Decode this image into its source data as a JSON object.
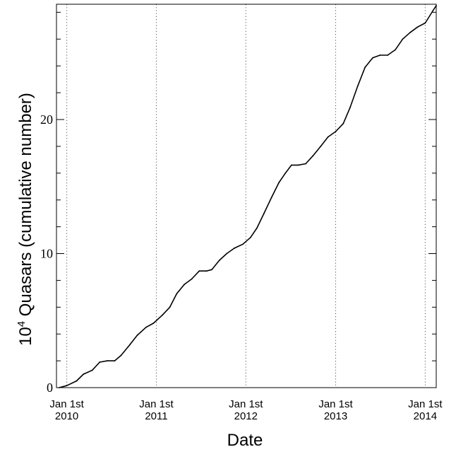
{
  "chart_data": {
    "type": "line",
    "title": "",
    "xlabel": "Date",
    "ylabel_base": "10",
    "ylabel_exp": "4",
    "ylabel_rest": " Quasars (cumulative number)",
    "ylim": [
      0,
      28.6
    ],
    "xlim": [
      "2009-11-20",
      "2014-02-15"
    ],
    "grid": "vertical dotted lines at year starts",
    "x_tick_labels": [
      {
        "date": "2010-01-01",
        "line1": "Jan 1st",
        "line2": "2010"
      },
      {
        "date": "2011-01-01",
        "line1": "Jan 1st",
        "line2": "2011"
      },
      {
        "date": "2012-01-01",
        "line1": "Jan 1st",
        "line2": "2012"
      },
      {
        "date": "2013-01-01",
        "line1": "Jan 1st",
        "line2": "2013"
      },
      {
        "date": "2014-01-01",
        "line1": "Jan 1st",
        "line2": "2014"
      }
    ],
    "y_tick_labels": [
      {
        "value": 0,
        "label": "0"
      },
      {
        "value": 10,
        "label": "10"
      },
      {
        "value": 20,
        "label": "20"
      }
    ],
    "y_minor_ticks": [
      2,
      4,
      6,
      8,
      12,
      14,
      16,
      18,
      22,
      24,
      26,
      28
    ],
    "series": [
      {
        "points": [
          [
            "2009-12-01",
            0.0
          ],
          [
            "2010-01-01",
            0.15
          ],
          [
            "2010-02-10",
            0.5
          ],
          [
            "2010-03-10",
            1.0
          ],
          [
            "2010-04-15",
            1.3
          ],
          [
            "2010-05-15",
            1.9
          ],
          [
            "2010-06-15",
            2.0
          ],
          [
            "2010-07-15",
            2.0
          ],
          [
            "2010-08-10",
            2.4
          ],
          [
            "2010-09-15",
            3.2
          ],
          [
            "2010-10-15",
            3.9
          ],
          [
            "2010-11-20",
            4.5
          ],
          [
            "2010-12-20",
            4.8
          ],
          [
            "2011-01-25",
            5.4
          ],
          [
            "2011-02-25",
            6.0
          ],
          [
            "2011-03-25",
            7.0
          ],
          [
            "2011-04-25",
            7.7
          ],
          [
            "2011-05-25",
            8.1
          ],
          [
            "2011-06-25",
            8.7
          ],
          [
            "2011-07-25",
            8.7
          ],
          [
            "2011-08-15",
            8.8
          ],
          [
            "2011-09-15",
            9.5
          ],
          [
            "2011-10-15",
            10.0
          ],
          [
            "2011-11-15",
            10.4
          ],
          [
            "2011-12-20",
            10.7
          ],
          [
            "2012-01-20",
            11.2
          ],
          [
            "2012-02-15",
            11.9
          ],
          [
            "2012-03-15",
            13.0
          ],
          [
            "2012-04-15",
            14.2
          ],
          [
            "2012-05-15",
            15.3
          ],
          [
            "2012-06-10",
            16.0
          ],
          [
            "2012-07-05",
            16.6
          ],
          [
            "2012-08-01",
            16.6
          ],
          [
            "2012-09-01",
            16.7
          ],
          [
            "2012-10-01",
            17.3
          ],
          [
            "2012-11-01",
            18.0
          ],
          [
            "2012-12-01",
            18.7
          ],
          [
            "2013-01-01",
            19.1
          ],
          [
            "2013-02-01",
            19.7
          ],
          [
            "2013-03-01",
            20.9
          ],
          [
            "2013-04-01",
            22.5
          ],
          [
            "2013-05-01",
            23.9
          ],
          [
            "2013-06-01",
            24.6
          ],
          [
            "2013-07-01",
            24.8
          ],
          [
            "2013-08-01",
            24.8
          ],
          [
            "2013-09-01",
            25.2
          ],
          [
            "2013-10-01",
            26.0
          ],
          [
            "2013-11-01",
            26.5
          ],
          [
            "2013-12-01",
            26.9
          ],
          [
            "2014-01-01",
            27.2
          ],
          [
            "2014-02-01",
            28.1
          ],
          [
            "2014-02-15",
            28.5
          ]
        ]
      }
    ]
  }
}
